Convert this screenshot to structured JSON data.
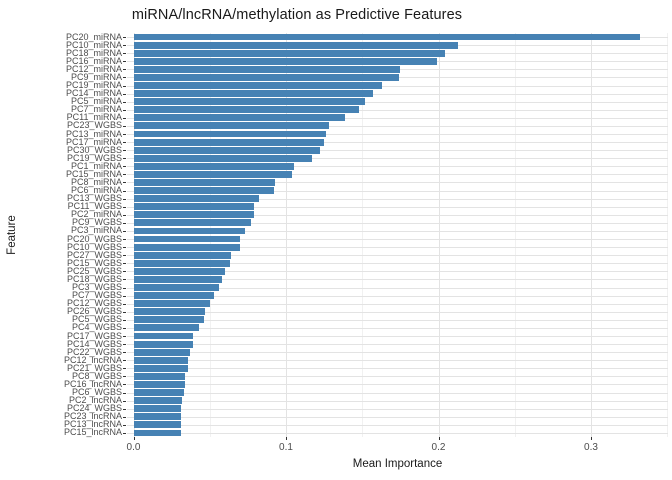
{
  "title": "miRNA/lncRNA/methylation as Predictive Features",
  "colors": {
    "bar": "#4682b4",
    "grid_major": "#e3e3e3",
    "grid_minor": "#f1f1f1",
    "tick_text": "#4d4d4d",
    "title_text": "#1a1a1a"
  },
  "chart_data": {
    "type": "bar",
    "orientation": "horizontal",
    "title": "miRNA/lncRNA/methylation as Predictive Features",
    "xlabel": "Mean Importance",
    "ylabel": "Feature",
    "xlim": [
      0,
      0.35
    ],
    "x_ticks": [
      0.0,
      0.1,
      0.2,
      0.3
    ],
    "x_tick_labels": [
      "0.0",
      "0.1",
      "0.2",
      "0.3"
    ],
    "x_minor_ticks": [
      0.05,
      0.15,
      0.25,
      0.35
    ],
    "grid": "on",
    "legend": "none",
    "categories": [
      "PC20_miRNA",
      "PC10_miRNA",
      "PC18_miRNA",
      "PC16_miRNA",
      "PC12_miRNA",
      "PC9_miRNA",
      "PC19_miRNA",
      "PC14_miRNA",
      "PC5_miRNA",
      "PC7_miRNA",
      "PC11_miRNA",
      "PC23_WGBS",
      "PC13_miRNA",
      "PC17_miRNA",
      "PC30_WGBS",
      "PC19_WGBS",
      "PC1_miRNA",
      "PC15_miRNA",
      "PC8_miRNA",
      "PC6_miRNA",
      "PC13_WGBS",
      "PC11_WGBS",
      "PC2_miRNA",
      "PC9_WGBS",
      "PC3_miRNA",
      "PC20_WGBS",
      "PC10_WGBS",
      "PC27_WGBS",
      "PC15_WGBS",
      "PC25_WGBS",
      "PC18_WGBS",
      "PC3_WGBS",
      "PC7_WGBS",
      "PC12_WGBS",
      "PC26_WGBS",
      "PC5_WGBS",
      "PC4_WGBS",
      "PC17_WGBS",
      "PC14_WGBS",
      "PC22_WGBS",
      "PC12_lncRNA",
      "PC21_WGBS",
      "PC8_WGBS",
      "PC16_lncRNA",
      "PC6_WGBS",
      "PC2_lncRNA",
      "PC24_WGBS",
      "PC23_lncRNA",
      "PC13_lncRNA",
      "PC15_lncRNA"
    ],
    "values": [
      0.332,
      0.213,
      0.204,
      0.199,
      0.175,
      0.174,
      0.163,
      0.157,
      0.152,
      0.148,
      0.139,
      0.128,
      0.126,
      0.125,
      0.122,
      0.117,
      0.105,
      0.104,
      0.093,
      0.092,
      0.082,
      0.079,
      0.079,
      0.077,
      0.073,
      0.07,
      0.07,
      0.064,
      0.063,
      0.06,
      0.058,
      0.056,
      0.053,
      0.05,
      0.047,
      0.046,
      0.043,
      0.039,
      0.039,
      0.037,
      0.036,
      0.036,
      0.034,
      0.034,
      0.033,
      0.032,
      0.031,
      0.031,
      0.031,
      0.031
    ]
  }
}
